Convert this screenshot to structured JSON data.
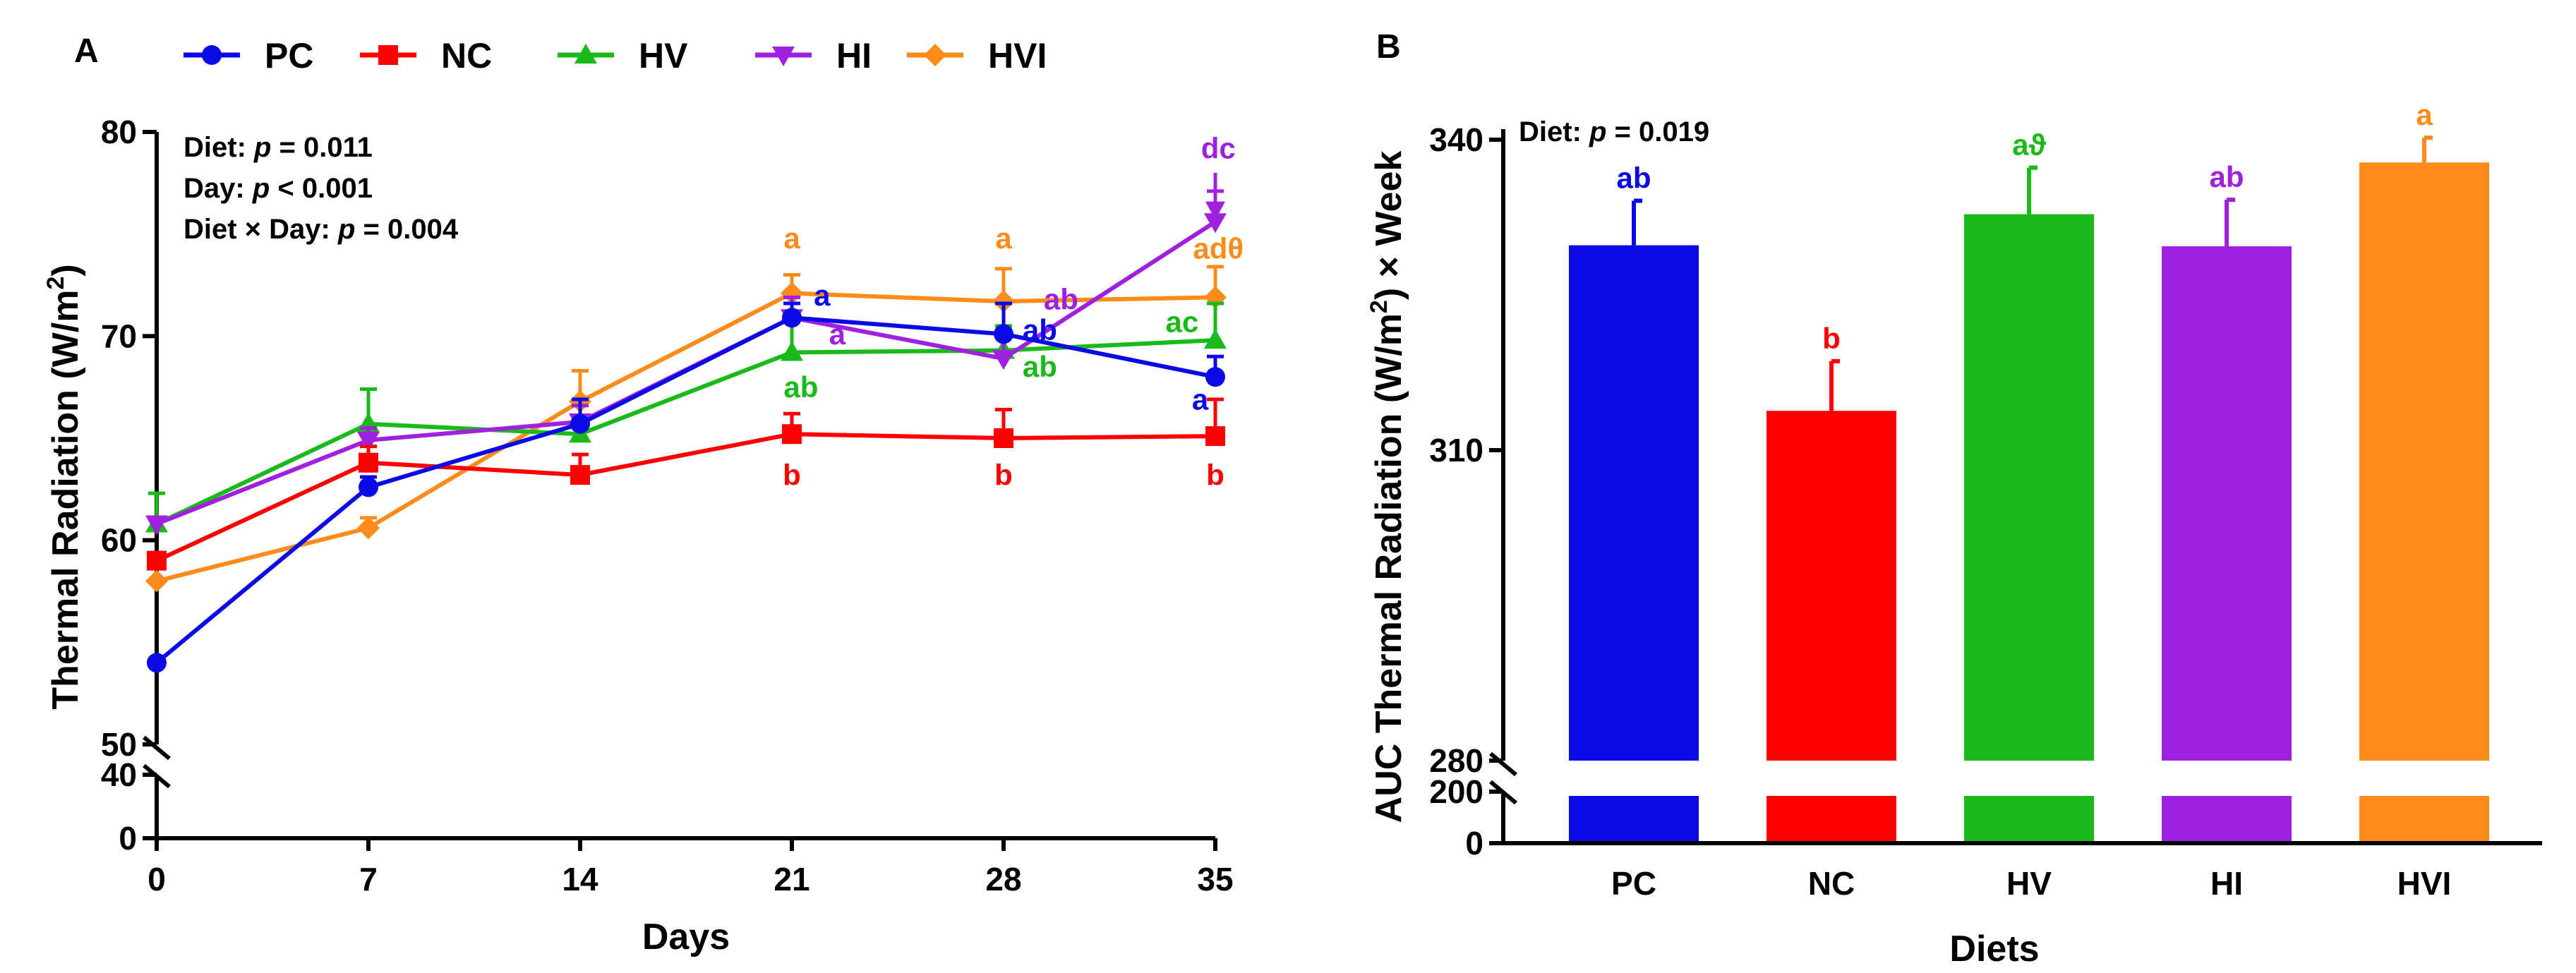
{
  "chart_data": [
    {
      "type": "line",
      "panel_label": "A",
      "xlabel": "Days",
      "ylabel": "Thermal Radiation (W/m",
      "ylabel_sup": "2",
      "ylabel_close": ")",
      "x": [
        0,
        7,
        14,
        21,
        28,
        35
      ],
      "x_tick_labels": [
        "0",
        "7",
        "14",
        "21",
        "28",
        "35"
      ],
      "y_tick_labels_upper": [
        "50",
        "60",
        "70",
        "80"
      ],
      "y_tick_labels_lower": [
        "0",
        "40"
      ],
      "ylim_upper": [
        50,
        80
      ],
      "ylim_lower": [
        0,
        40
      ],
      "axis_break": true,
      "stats": [
        {
          "label": "Diet: ",
          "p": "p",
          "value": " = 0.011"
        },
        {
          "label": "Day: ",
          "p": "p",
          "value": " < 0.001"
        },
        {
          "label": "Diet × Day: ",
          "p": "p",
          "value": " = 0.004"
        }
      ],
      "series": [
        {
          "name": "PC",
          "color": "#0a0ae6",
          "marker": "circle",
          "values": [
            54.0,
            62.6,
            65.7,
            70.9,
            70.1,
            68.0
          ],
          "errors": [
            0,
            0.5,
            1.2,
            0.7,
            1.5,
            1.0
          ]
        },
        {
          "name": "NC",
          "color": "#ff0000",
          "marker": "square",
          "values": [
            59.0,
            63.8,
            63.2,
            65.2,
            65.0,
            65.1
          ],
          "errors": [
            0,
            0.8,
            1.0,
            1.0,
            1.4,
            1.8
          ]
        },
        {
          "name": "HV",
          "color": "#1aba1a",
          "marker": "triangle-up",
          "values": [
            60.8,
            65.7,
            65.2,
            69.2,
            69.3,
            69.8
          ],
          "errors": [
            1.5,
            1.7,
            0.8,
            1.5,
            1.2,
            1.8
          ]
        },
        {
          "name": "HI",
          "color": "#a020e0",
          "marker": "triangle-down",
          "values": [
            60.8,
            64.9,
            65.8,
            70.9,
            68.9,
            75.6
          ],
          "errors": [
            0,
            0.6,
            0.8,
            1.0,
            1.2,
            1.5
          ]
        },
        {
          "name": "HVI",
          "color": "#ff8c1a",
          "marker": "diamond",
          "values": [
            58.0,
            60.6,
            66.8,
            72.1,
            71.7,
            71.9
          ],
          "errors": [
            0,
            0.5,
            1.5,
            0.9,
            1.6,
            1.5
          ]
        }
      ],
      "annotations": [
        {
          "text": "a",
          "color": "#ff8c1a",
          "x": 21,
          "y": 74.3
        },
        {
          "text": "a",
          "color": "#0a0ae6",
          "x": 22.0,
          "y": 71.5
        },
        {
          "text": "a",
          "color": "#a020e0",
          "x": 22.5,
          "y": 69.6
        },
        {
          "text": "ab",
          "color": "#1aba1a",
          "x": 21.3,
          "y": 67.0
        },
        {
          "text": "b",
          "color": "#ff0000",
          "x": 21.0,
          "y": 62.7
        },
        {
          "text": "a",
          "color": "#ff8c1a",
          "x": 28,
          "y": 74.3
        },
        {
          "text": "ab",
          "color": "#a020e0",
          "x": 29.9,
          "y": 71.3
        },
        {
          "text": "ab",
          "color": "#0a0ae6",
          "x": 29.2,
          "y": 69.8
        },
        {
          "text": "ab",
          "color": "#1aba1a",
          "x": 29.2,
          "y": 68.0
        },
        {
          "text": "b",
          "color": "#ff0000",
          "x": 28.0,
          "y": 62.7
        },
        {
          "text": "dc",
          "color": "#a020e0",
          "x": 35.1,
          "y": 78.7
        },
        {
          "text": "adθ",
          "color": "#ff8c1a",
          "x": 35.1,
          "y": 73.8
        },
        {
          "text": "ac",
          "color": "#1aba1a",
          "x": 33.9,
          "y": 70.2
        },
        {
          "text": "a",
          "color": "#0a0ae6",
          "x": 34.5,
          "y": 66.4
        },
        {
          "text": "b",
          "color": "#ff0000",
          "x": 35.0,
          "y": 62.7
        }
      ]
    },
    {
      "type": "bar",
      "panel_label": "B",
      "xlabel": "Diets",
      "ylabel": "AUC Thermal Radiation (W/m",
      "ylabel_sup": "2",
      "ylabel_close": ") × Week",
      "categories": [
        "PC",
        "NC",
        "HV",
        "HI",
        "HVI"
      ],
      "values": [
        329.8,
        313.8,
        332.8,
        329.7,
        337.8
      ],
      "errors": [
        4.3,
        4.8,
        4.5,
        4.5,
        2.4
      ],
      "colors": [
        "#0a0ae6",
        "#ff0000",
        "#1aba1a",
        "#a020e0",
        "#ff8c1a"
      ],
      "letters": [
        "ab",
        "b",
        "aϑ",
        "ab",
        "a"
      ],
      "y_tick_labels_upper": [
        "280",
        "310",
        "340"
      ],
      "y_tick_labels_lower": [
        "0",
        "200"
      ],
      "ylim_upper": [
        280,
        340
      ],
      "ylim_lower": [
        0,
        200
      ],
      "axis_break": true,
      "stat": {
        "label": "Diet: ",
        "p": "p",
        "value": " = 0.019"
      }
    }
  ]
}
